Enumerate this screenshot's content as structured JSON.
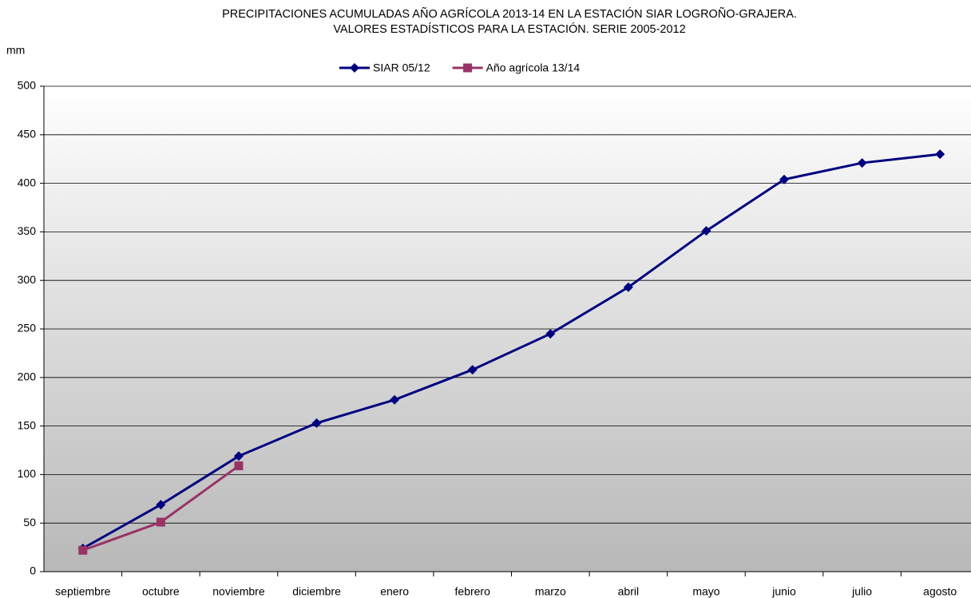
{
  "chart_data": {
    "type": "line",
    "title": [
      "PRECIPITACIONES ACUMULADAS AÑO AGRÍCOLA 2013-14 EN LA ESTACIÓN SIAR LOGROÑO-GRAJERA.",
      "VALORES ESTADÍSTICOS PARA LA ESTACIÓN. SERIE 2005-2012"
    ],
    "y_label": "mm",
    "categories": [
      "septiembre",
      "octubre",
      "noviembre",
      "diciembre",
      "enero",
      "febrero",
      "marzo",
      "abril",
      "mayo",
      "junio",
      "julio",
      "agosto"
    ],
    "series": [
      {
        "name": "SIAR 05/12",
        "color": "#000080",
        "marker": "diamond",
        "values": [
          24,
          69,
          119,
          153,
          177,
          208,
          245,
          293,
          351,
          404,
          421,
          430
        ]
      },
      {
        "name": "Año agrícola 13/14",
        "color": "#993366",
        "marker": "square",
        "values": [
          22,
          51,
          109,
          null,
          null,
          null,
          null,
          null,
          null,
          null,
          null,
          null
        ]
      }
    ],
    "ylim": [
      0,
      500
    ],
    "yticks": [
      0,
      50,
      100,
      150,
      200,
      250,
      300,
      350,
      400,
      450,
      500
    ],
    "grid": true,
    "legend": "top"
  }
}
